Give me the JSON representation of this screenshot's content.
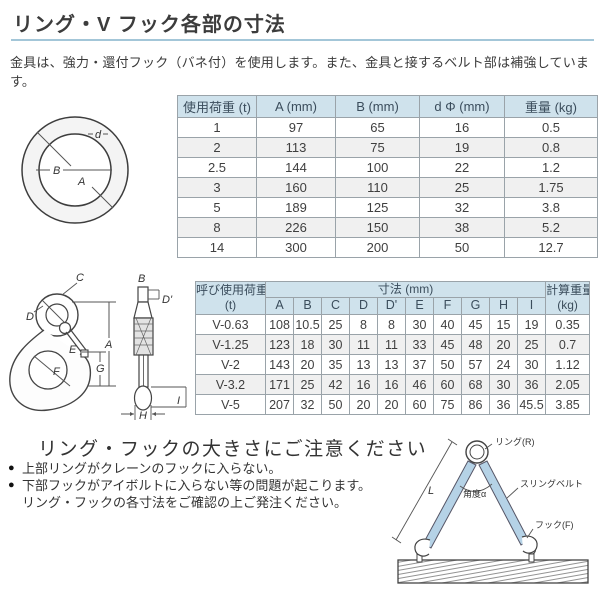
{
  "page": {
    "title": "リング・V フック各部の寸法",
    "intro": "金具は、強力・還付フック（バネ付）を使用します。また、金具と接するベルト部は補強しています。"
  },
  "colors": {
    "table_header_bg": "#cfe2ec",
    "title_rule_blue": "#a3c6d8",
    "belt_blue": "#b5d2e6",
    "row_alt_gray": "#f0f0f0"
  },
  "ring_table": {
    "headers": [
      "使用荷重 (t)",
      "A (mm)",
      "B (mm)",
      "d Φ (mm)",
      "重量 (kg)"
    ],
    "rows": [
      [
        "1",
        "97",
        "65",
        "16",
        "0.5"
      ],
      [
        "2",
        "113",
        "75",
        "19",
        "0.8"
      ],
      [
        "2.5",
        "144",
        "100",
        "22",
        "1.2"
      ],
      [
        "3",
        "160",
        "110",
        "25",
        "1.75"
      ],
      [
        "5",
        "189",
        "125",
        "32",
        "3.8"
      ],
      [
        "8",
        "226",
        "150",
        "38",
        "5.2"
      ],
      [
        "14",
        "300",
        "200",
        "50",
        "12.7"
      ]
    ]
  },
  "hook_table": {
    "col1_header": "呼び使用荷重",
    "col1_header_sub": "(t)",
    "dim_header": "寸法 (mm)",
    "dim_cols": [
      "A",
      "B",
      "C",
      "D",
      "D'",
      "E",
      "F",
      "G",
      "H",
      "I"
    ],
    "weight_header": "計算重量",
    "weight_header_sub": "(kg)",
    "rows": [
      [
        "V-0.63",
        "108",
        "10.5",
        "25",
        "8",
        "8",
        "30",
        "40",
        "45",
        "15",
        "19",
        "0.35"
      ],
      [
        "V-1.25",
        "123",
        "18",
        "30",
        "11",
        "11",
        "33",
        "45",
        "48",
        "20",
        "25",
        "0.7"
      ],
      [
        "V-2",
        "143",
        "20",
        "35",
        "13",
        "13",
        "37",
        "50",
        "57",
        "24",
        "30",
        "1.12"
      ],
      [
        "V-3.2",
        "171",
        "25",
        "42",
        "16",
        "16",
        "46",
        "60",
        "68",
        "30",
        "36",
        "2.05"
      ],
      [
        "V-5",
        "207",
        "32",
        "50",
        "20",
        "20",
        "60",
        "75",
        "86",
        "36",
        "45.5",
        "3.85"
      ]
    ]
  },
  "notice": {
    "heading": "リング・フックの大きさにご注意ください",
    "bullet1": "上部リングがクレーンのフックに入らない。",
    "bullet2": "下部フックがアイボルトに入らない等の問題が起こります。",
    "bullet2_cont": "リング・フックの各寸法をご確認の上ご発注ください。"
  },
  "ring_diagram": {
    "label_d": "d",
    "label_a": "A",
    "label_b": "B"
  },
  "hook_diagram": {
    "side": {
      "a": "A",
      "c": "C",
      "d": "D",
      "e": "E",
      "f": "F",
      "g": "G"
    },
    "front": {
      "b": "B",
      "d_prime": "D'",
      "i": "I",
      "h": "H"
    }
  },
  "sling_diagram": {
    "ring_label": "リング(R)",
    "belt_label": "スリングベルト",
    "angle_label": "角度α",
    "hook_label": "フック(F)",
    "length_label": "L"
  }
}
